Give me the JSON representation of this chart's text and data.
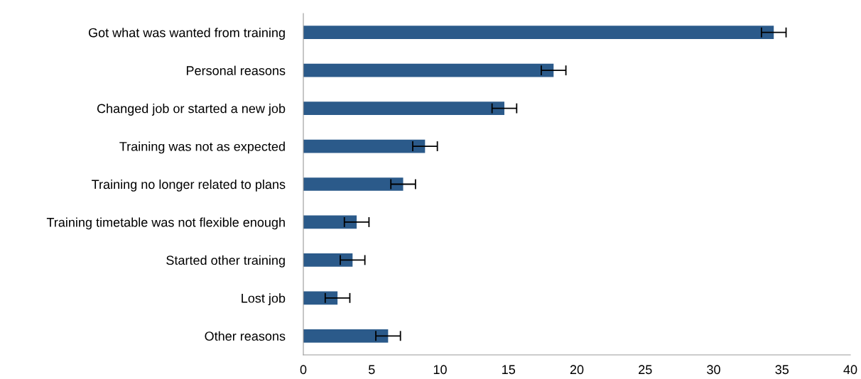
{
  "chart_data": {
    "type": "bar",
    "orientation": "horizontal",
    "categories": [
      "Got what was wanted from training",
      "Personal reasons",
      "Changed job or started a new job",
      "Training was not as expected",
      "Training no longer related to plans",
      "Training timetable was not flexible enough",
      "Started other training",
      "Lost job",
      "Other reasons"
    ],
    "values": [
      34.4,
      18.3,
      14.7,
      8.9,
      7.3,
      3.9,
      3.6,
      2.5,
      6.2
    ],
    "errors": [
      0.9,
      0.9,
      0.9,
      0.9,
      0.9,
      0.9,
      0.9,
      0.9,
      0.9
    ],
    "color": "#2b5a8a",
    "xlim": [
      0,
      40
    ],
    "xticks": [
      0,
      5,
      10,
      15,
      20,
      25,
      30,
      35,
      40
    ],
    "grid": false
  }
}
